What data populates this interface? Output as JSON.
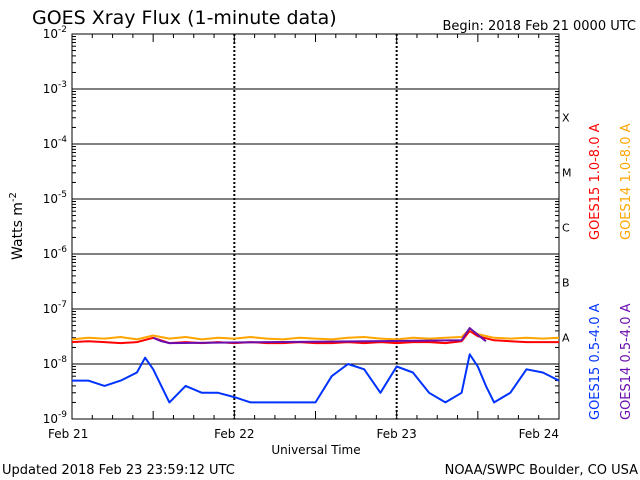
{
  "chart_data": {
    "type": "line",
    "title": "GOES Xray Flux (1-minute data)",
    "begin_label": "Begin:  2018 Feb 21 0000 UTC",
    "xlabel": "Universal Time",
    "ylabel": "Watts m",
    "ylabel_superscript": "-2",
    "y_scale": "log",
    "ylim": [
      1e-09,
      0.01
    ],
    "y_ticks": [
      {
        "value": 1e-09,
        "base": "10",
        "exp": "-9"
      },
      {
        "value": 1e-08,
        "base": "10",
        "exp": "-8"
      },
      {
        "value": 1e-07,
        "base": "10",
        "exp": "-7"
      },
      {
        "value": 1e-06,
        "base": "10",
        "exp": "-6"
      },
      {
        "value": 1e-05,
        "base": "10",
        "exp": "-5"
      },
      {
        "value": 0.0001,
        "base": "10",
        "exp": "-4"
      },
      {
        "value": 0.001,
        "base": "10",
        "exp": "-3"
      },
      {
        "value": 0.01,
        "base": "10",
        "exp": "-2"
      }
    ],
    "x_unit": "days since Feb 21 0000 UTC",
    "xlim": [
      0,
      3
    ],
    "x_ticks": [
      {
        "value": 0,
        "label": "Feb 21"
      },
      {
        "value": 1,
        "label": "Feb 22"
      },
      {
        "value": 2,
        "label": "Feb 23"
      },
      {
        "value": 3,
        "label": "Feb 24"
      }
    ],
    "flare_classes": [
      {
        "label": "X",
        "value": 0.0001
      },
      {
        "label": "M",
        "value": 1e-05
      },
      {
        "label": "C",
        "value": 1e-06
      },
      {
        "label": "B",
        "value": 1e-07
      },
      {
        "label": "A",
        "value": 1e-08
      }
    ],
    "grid": "horizontal lines at each decade",
    "legend_position": "right, vertical text",
    "series": [
      {
        "name": "GOES15 1.0-8.0 A",
        "color": "#ff0000",
        "x": [
          0,
          0.1,
          0.2,
          0.3,
          0.4,
          0.5,
          0.6,
          0.7,
          0.8,
          0.9,
          1.0,
          1.1,
          1.2,
          1.3,
          1.4,
          1.5,
          1.6,
          1.7,
          1.8,
          1.9,
          2.0,
          2.1,
          2.2,
          2.3,
          2.4,
          2.45,
          2.5,
          2.6,
          2.7,
          2.8,
          2.9,
          3.0
        ],
        "y": [
          2.5e-08,
          2.6e-08,
          2.5e-08,
          2.4e-08,
          2.5e-08,
          3e-08,
          2.4e-08,
          2.5e-08,
          2.4e-08,
          2.5e-08,
          2.4e-08,
          2.5e-08,
          2.4e-08,
          2.4e-08,
          2.5e-08,
          2.4e-08,
          2.4e-08,
          2.5e-08,
          2.4e-08,
          2.5e-08,
          2.4e-08,
          2.5e-08,
          2.5e-08,
          2.4e-08,
          2.6e-08,
          4e-08,
          3.2e-08,
          2.7e-08,
          2.6e-08,
          2.5e-08,
          2.5e-08,
          2.5e-08
        ]
      },
      {
        "name": "GOES14 1.0-8.0 A",
        "color": "#ffa500",
        "x": [
          0,
          0.1,
          0.2,
          0.3,
          0.4,
          0.5,
          0.6,
          0.7,
          0.8,
          0.9,
          1.0,
          1.1,
          1.2,
          1.3,
          1.4,
          1.5,
          1.6,
          1.7,
          1.8,
          1.9,
          2.0,
          2.1,
          2.2,
          2.3,
          2.4,
          2.45,
          2.5,
          2.6,
          2.7,
          2.8,
          2.9,
          3.0
        ],
        "y": [
          2.8e-08,
          3e-08,
          2.9e-08,
          3.1e-08,
          2.8e-08,
          3.3e-08,
          2.9e-08,
          3.1e-08,
          2.8e-08,
          3e-08,
          2.9e-08,
          3.1e-08,
          2.9e-08,
          2.8e-08,
          3e-08,
          2.9e-08,
          2.8e-08,
          3e-08,
          3.1e-08,
          2.9e-08,
          2.8e-08,
          3e-08,
          2.9e-08,
          3e-08,
          3.1e-08,
          4.3e-08,
          3.5e-08,
          3e-08,
          2.9e-08,
          3e-08,
          2.9e-08,
          3e-08
        ]
      },
      {
        "name": "GOES15 0.5-4.0 A",
        "color": "#0033ff",
        "x": [
          0,
          0.1,
          0.2,
          0.3,
          0.4,
          0.45,
          0.5,
          0.55,
          0.6,
          0.7,
          0.8,
          0.9,
          1.0,
          1.1,
          1.2,
          1.3,
          1.4,
          1.5,
          1.6,
          1.7,
          1.8,
          1.9,
          2.0,
          2.1,
          2.2,
          2.3,
          2.4,
          2.45,
          2.5,
          2.55,
          2.6,
          2.7,
          2.8,
          2.9,
          3.0
        ],
        "y": [
          5e-09,
          5e-09,
          4e-09,
          5e-09,
          7e-09,
          1.3e-08,
          8e-09,
          4e-09,
          2e-09,
          4e-09,
          3e-09,
          3e-09,
          2.5e-09,
          2e-09,
          2e-09,
          2e-09,
          2e-09,
          2e-09,
          6e-09,
          1e-08,
          8e-09,
          3e-09,
          9e-09,
          7e-09,
          3e-09,
          2e-09,
          3e-09,
          1.5e-08,
          9e-09,
          4e-09,
          2e-09,
          3e-09,
          8e-09,
          7e-09,
          5e-09
        ]
      },
      {
        "name": "GOES14 0.5-4.0 A",
        "color": "#6a0dad",
        "x": [
          0.5,
          0.55,
          0.6,
          2.4,
          2.45,
          2.5,
          2.55
        ],
        "y": [
          3e-08,
          2.6e-08,
          2.4e-08,
          2.7e-08,
          4.5e-08,
          3.4e-08,
          2.6e-08
        ]
      }
    ]
  },
  "footer": {
    "updated": "Updated 2018 Feb 23 23:59:12 UTC",
    "credit": "NOAA/SWPC Boulder, CO USA"
  }
}
